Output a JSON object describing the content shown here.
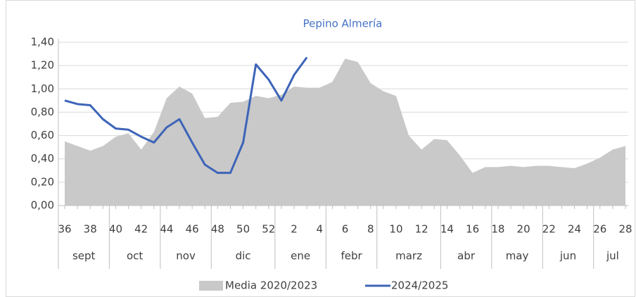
{
  "chart_data": {
    "type": "area_line",
    "title": "Pepino Almería",
    "categories": [
      36,
      null,
      38,
      null,
      40,
      null,
      42,
      null,
      44,
      null,
      46,
      null,
      48,
      null,
      50,
      null,
      52,
      null,
      2,
      null,
      4,
      null,
      6,
      null,
      8,
      null,
      10,
      null,
      12,
      null,
      14,
      null,
      16,
      null,
      18,
      null,
      20,
      null,
      22,
      null,
      24,
      null,
      26,
      null,
      28
    ],
    "groups": [
      {
        "name": "sept",
        "span": 4
      },
      {
        "name": "oct",
        "span": 4
      },
      {
        "name": "nov",
        "span": 4
      },
      {
        "name": "dic",
        "span": 5
      },
      {
        "name": "ene",
        "span": 4
      },
      {
        "name": "febr",
        "span": 4
      },
      {
        "name": "marz",
        "span": 5
      },
      {
        "name": "abr",
        "span": 4
      },
      {
        "name": "may",
        "span": 4
      },
      {
        "name": "jun",
        "span": 4
      },
      {
        "name": "jul",
        "span": 3
      }
    ],
    "series": [
      {
        "name": "Media 2020/2023",
        "kind": "area",
        "color": "#c9c9c9",
        "values": [
          0.55,
          0.51,
          0.47,
          0.51,
          0.59,
          0.62,
          0.48,
          0.63,
          0.92,
          1.02,
          0.96,
          0.75,
          0.76,
          0.88,
          0.89,
          0.94,
          0.92,
          0.95,
          1.02,
          1.01,
          1.01,
          1.06,
          1.26,
          1.23,
          1.05,
          0.98,
          0.94,
          0.6,
          0.48,
          0.57,
          0.56,
          0.43,
          0.28,
          0.33,
          0.33,
          0.34,
          0.33,
          0.34,
          0.34,
          0.33,
          0.32,
          0.36,
          0.41,
          0.48,
          0.51
        ]
      },
      {
        "name": "2024/2025",
        "kind": "line",
        "color": "#3d64b8",
        "values": [
          0.9,
          0.87,
          0.86,
          0.74,
          0.66,
          0.65,
          0.59,
          0.54,
          0.67,
          0.74,
          0.54,
          0.35,
          0.28,
          0.28,
          0.54,
          1.21,
          1.08,
          0.9,
          1.12,
          1.27,
          null,
          null,
          null,
          null,
          null,
          null,
          null,
          null,
          null,
          null,
          null,
          null,
          null,
          null,
          null,
          null,
          null,
          null,
          null,
          null,
          null,
          null,
          null,
          null,
          null
        ]
      }
    ],
    "ylim": [
      0,
      1.4
    ],
    "yticks": [
      {
        "value": 0,
        "label": "0,00"
      },
      {
        "value": 0.2,
        "label": "0,20"
      },
      {
        "value": 0.4,
        "label": "0,40"
      },
      {
        "value": 0.6,
        "label": "0,60"
      },
      {
        "value": 0.8,
        "label": "0,80"
      },
      {
        "value": 1.0,
        "label": "1,00"
      },
      {
        "value": 1.2,
        "label": "1,20"
      },
      {
        "value": 1.4,
        "label": "1,40"
      }
    ],
    "grid": true,
    "legend": "bottom"
  }
}
